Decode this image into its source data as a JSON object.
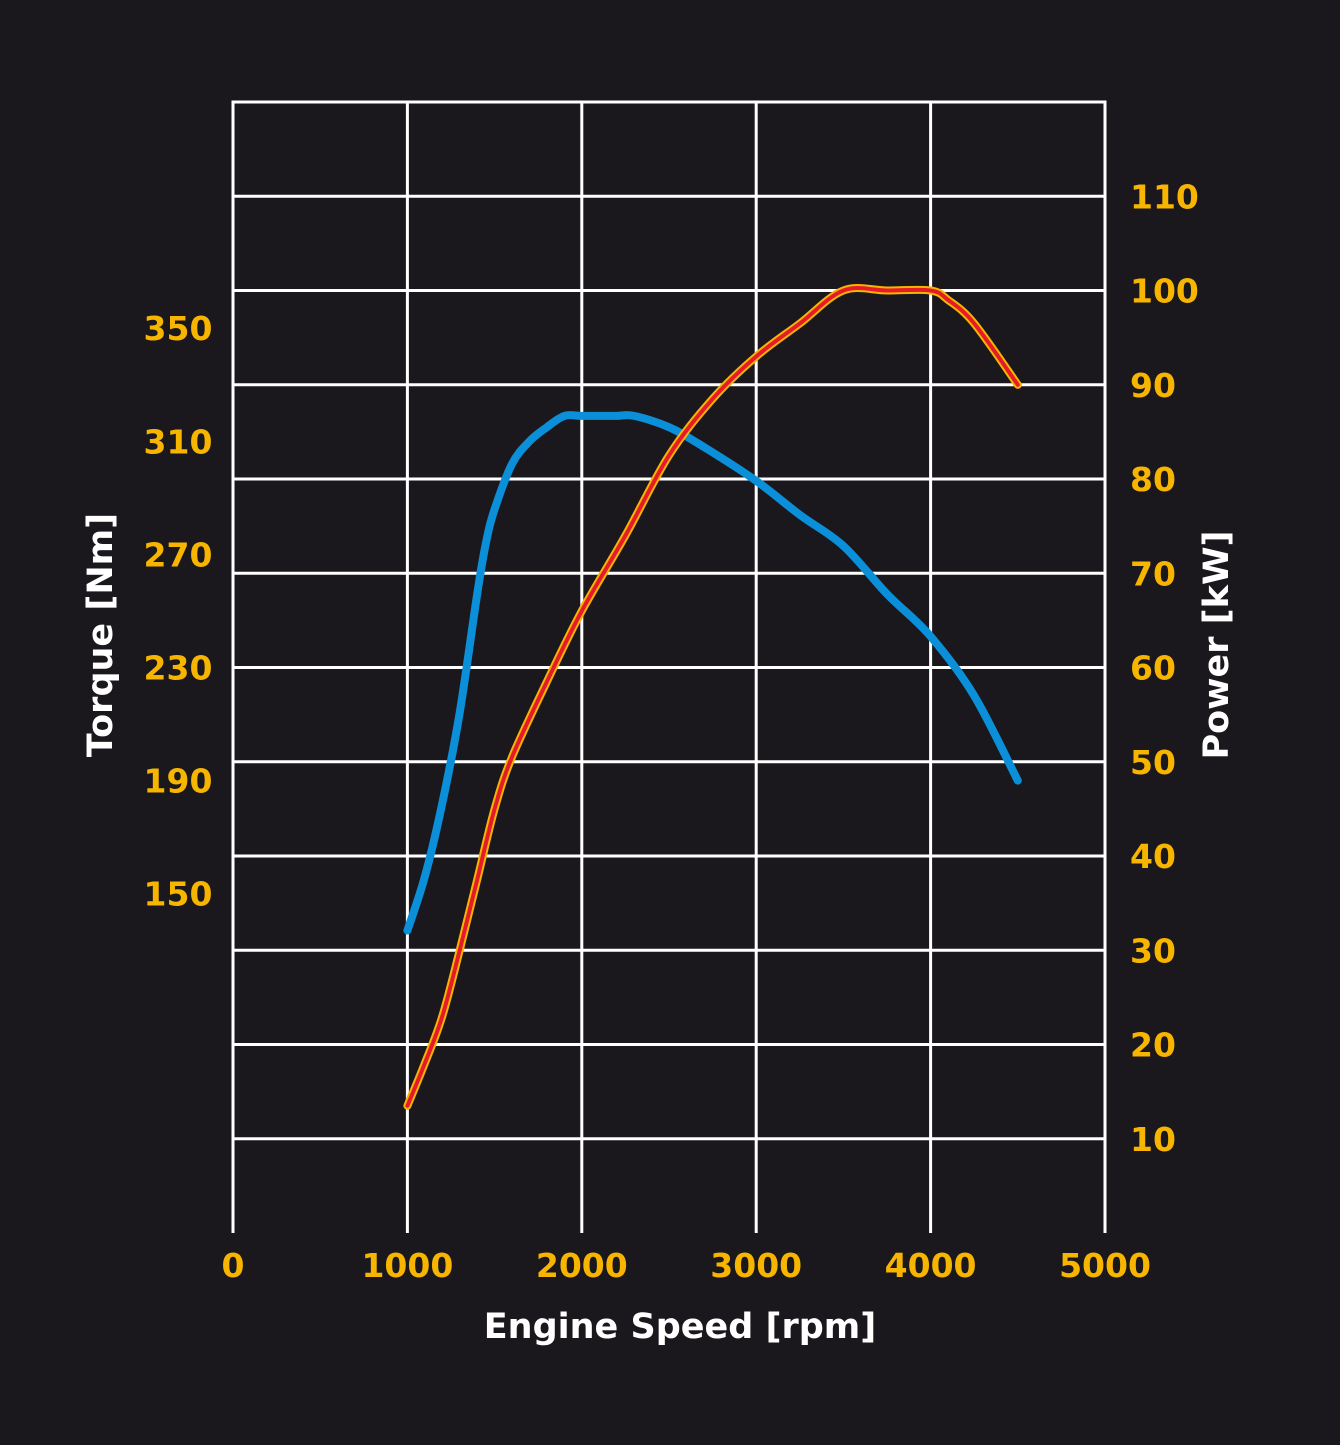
{
  "colors": {
    "background": "#1b181d",
    "grid": "#ffffff",
    "tick_label": "#f7b500",
    "axis_title": "#ffffff",
    "torque_line": "#0a8fd8",
    "power_line": "#e51b2a",
    "power_line_edge": "#f7b500"
  },
  "chart_data": {
    "type": "line",
    "xlabel": "Engine Speed [rpm]",
    "ylabel_left": "Torque [Nm]",
    "ylabel_right": "Power [kW]",
    "grid": true,
    "xlim": [
      0,
      5000
    ],
    "x_ticks": [
      "0",
      "1000",
      "2000",
      "3000",
      "4000",
      "5000"
    ],
    "ylim_left": [
      30,
      430
    ],
    "y_ticks_left": [
      {
        "value": 150,
        "label": "150"
      },
      {
        "value": 190,
        "label": "190"
      },
      {
        "value": 230,
        "label": "230"
      },
      {
        "value": 270,
        "label": "270"
      },
      {
        "value": 310,
        "label": "310"
      },
      {
        "value": 350,
        "label": "350"
      }
    ],
    "ylim_right": [
      0,
      120
    ],
    "y_ticks_right": [
      {
        "value": 10,
        "label": "10"
      },
      {
        "value": 20,
        "label": "20"
      },
      {
        "value": 30,
        "label": "30"
      },
      {
        "value": 40,
        "label": "40"
      },
      {
        "value": 50,
        "label": "50"
      },
      {
        "value": 60,
        "label": "60"
      },
      {
        "value": 70,
        "label": "70"
      },
      {
        "value": 80,
        "label": "80"
      },
      {
        "value": 90,
        "label": "90"
      },
      {
        "value": 100,
        "label": "100"
      },
      {
        "value": 110,
        "label": "110"
      }
    ],
    "series": [
      {
        "axis": "left",
        "color": "#0a8fd8",
        "x": [
          1000,
          1100,
          1200,
          1300,
          1400,
          1450,
          1500,
          1600,
          1700,
          1800,
          1900,
          2000,
          2100,
          2200,
          2300,
          2500,
          2700,
          3000,
          3250,
          3500,
          3750,
          4000,
          4250,
          4500
        ],
        "y": [
          137,
          156,
          182,
          214,
          256,
          274,
          286,
          302,
          310,
          315,
          319,
          319,
          319,
          319,
          319,
          315,
          308,
          296,
          284,
          273,
          256,
          241,
          220,
          190
        ]
      },
      {
        "axis": "right",
        "color": "#e51b2a",
        "x": [
          1000,
          1100,
          1200,
          1300,
          1400,
          1500,
          1600,
          1800,
          2000,
          2250,
          2500,
          2750,
          3000,
          3250,
          3500,
          3750,
          4000,
          4100,
          4250,
          4500
        ],
        "y": [
          13.5,
          18,
          23,
          30,
          37.5,
          45,
          50.5,
          58.5,
          66,
          74,
          82.5,
          88.5,
          93,
          96.5,
          100,
          100,
          100,
          99,
          96.5,
          90
        ]
      }
    ]
  }
}
